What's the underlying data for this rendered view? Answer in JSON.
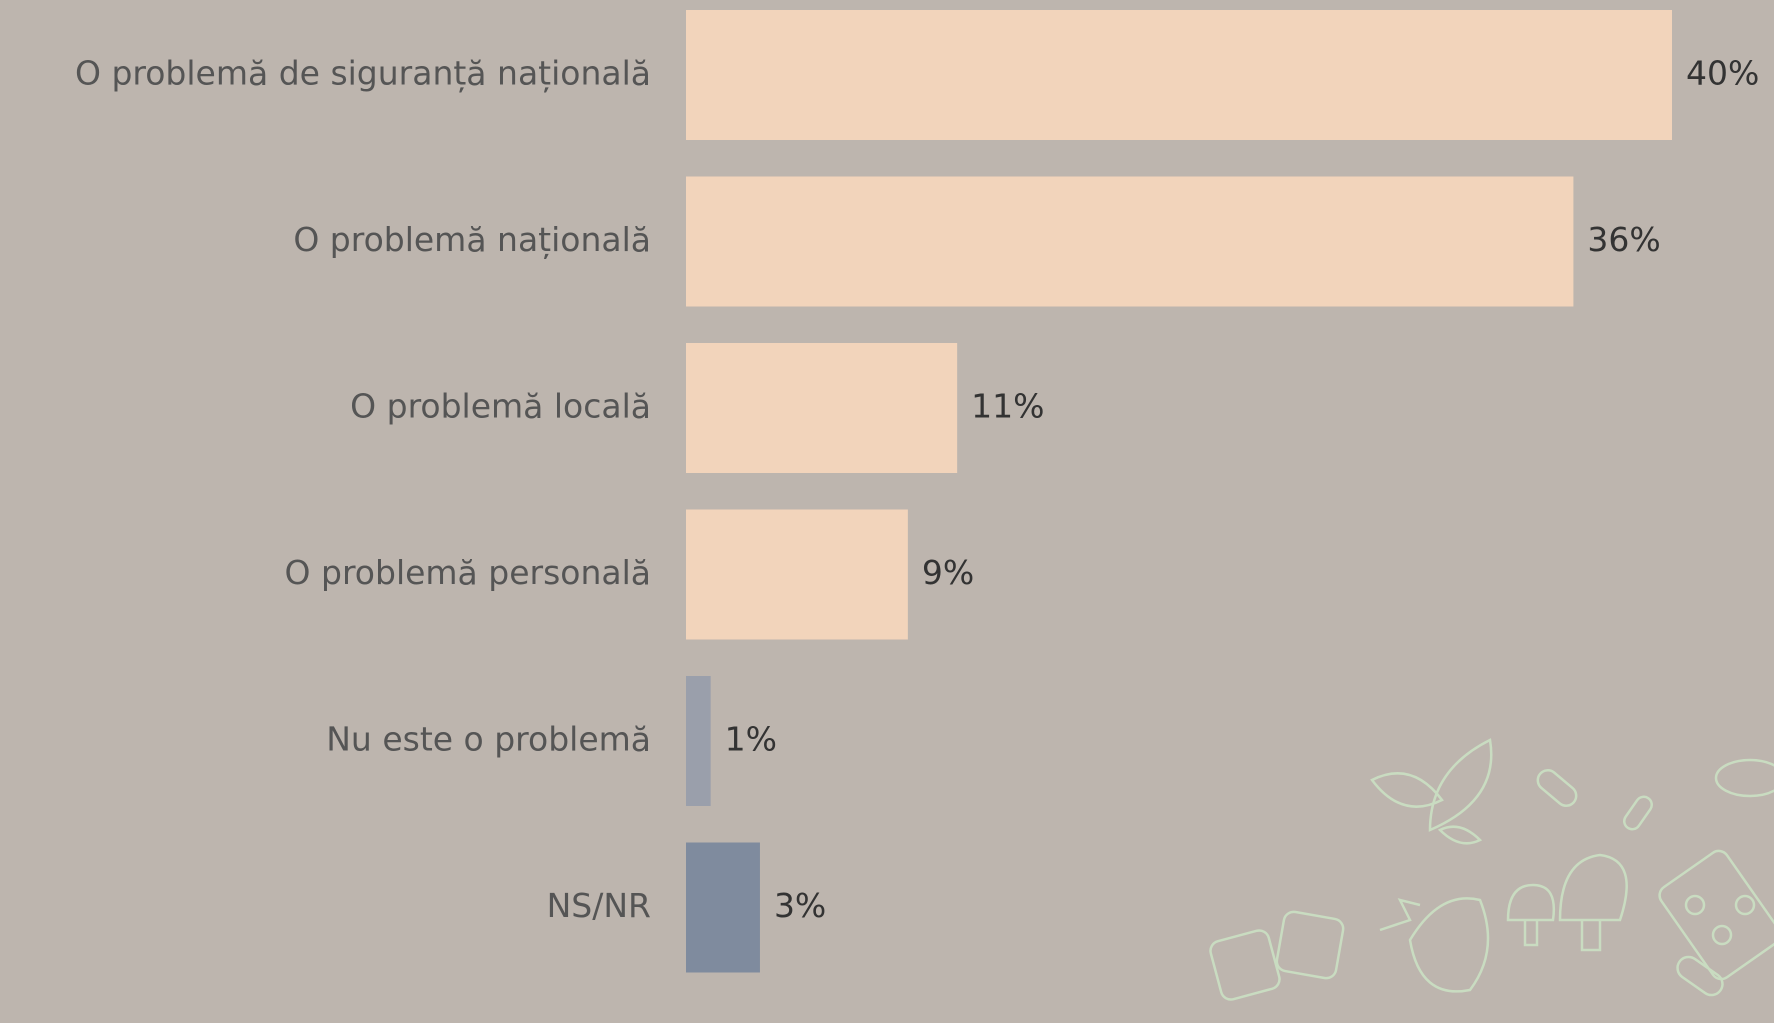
{
  "chart_data": {
    "type": "hbar",
    "categories": [
      "O problemă de siguranță națională",
      "O problemă națională",
      "O problemă locală",
      "O problemă personală",
      "Nu este o problemă",
      "NS/NR"
    ],
    "values": [
      40,
      36,
      11,
      9,
      1,
      3
    ],
    "value_labels": [
      "40%",
      "36%",
      "11%",
      "9%",
      "1%",
      "3%"
    ],
    "colors": [
      "#f2d4bb",
      "#f2d4bb",
      "#f2d4bb",
      "#f2d4bb",
      "#9a9fab",
      "#7f8b9e"
    ]
  }
}
